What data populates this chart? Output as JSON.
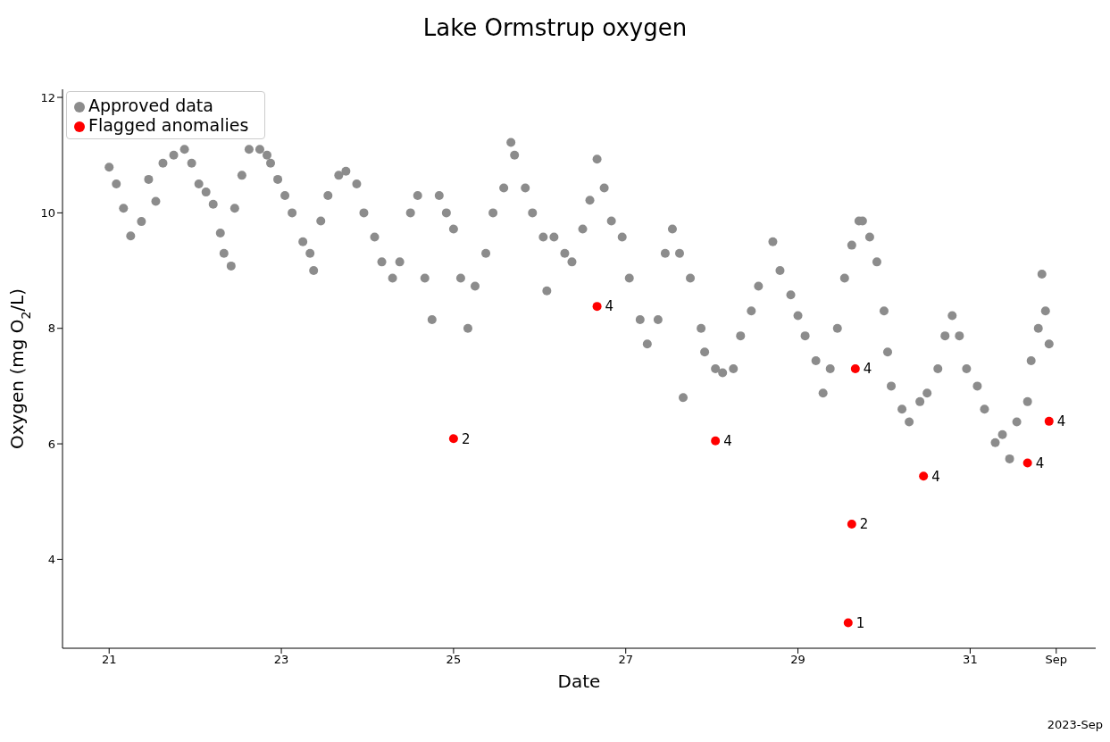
{
  "chart_data": {
    "type": "scatter",
    "title": "Lake Ormstrup oxygen",
    "xlabel": "Date",
    "ylabel": "Oxygen (mg O$_{2}$/L)",
    "annotations": [
      "2023-Sep",
      {
        "text": "2",
        "x": "2023-08-25T00:00",
        "y": 6.09
      },
      {
        "text": "4",
        "x": "2023-08-26T16:00",
        "y": 8.38
      },
      {
        "text": "4",
        "x": "2023-08-28T01:00",
        "y": 6.05
      },
      {
        "text": "1",
        "x": "2023-08-29T14:00",
        "y": 2.9
      },
      {
        "text": "2",
        "x": "2023-08-29T15:00",
        "y": 4.61
      },
      {
        "text": "4",
        "x": "2023-08-29T16:00",
        "y": 7.3
      },
      {
        "text": "4",
        "x": "2023-08-30T11:00",
        "y": 5.44
      },
      {
        "text": "4",
        "x": "2023-08-31T16:00",
        "y": 5.67
      },
      {
        "text": "4",
        "x": "2023-08-31T22:00",
        "y": 6.39
      }
    ],
    "xlim": [
      "2023-08-20T11:00",
      "2023-09-01T11:00"
    ],
    "xticks": [
      {
        "value": "2023-08-21",
        "label": "21"
      },
      {
        "value": "2023-08-23",
        "label": "23"
      },
      {
        "value": "2023-08-25",
        "label": "25"
      },
      {
        "value": "2023-08-27",
        "label": "27"
      },
      {
        "value": "2023-08-29",
        "label": "29"
      },
      {
        "value": "2023-08-31",
        "label": "31"
      },
      {
        "value": "2023-09-01",
        "label": "Sep"
      }
    ],
    "ylim": [
      2.46,
      12.14
    ],
    "yticks": [
      4,
      6,
      8,
      10,
      12
    ],
    "grid": false,
    "legend": "top left",
    "marker": "circle",
    "series": [
      {
        "name": "Approved data",
        "color": "#8c8c8c",
        "x": [
          "2023-08-21T00:00",
          "2023-08-21T02:00",
          "2023-08-21T04:00",
          "2023-08-21T06:00",
          "2023-08-21T09:00",
          "2023-08-21T11:00",
          "2023-08-21T13:00",
          "2023-08-21T15:00",
          "2023-08-21T18:00",
          "2023-08-21T21:00",
          "2023-08-21T23:00",
          "2023-08-22T01:00",
          "2023-08-22T03:00",
          "2023-08-22T05:00",
          "2023-08-22T07:00",
          "2023-08-22T08:00",
          "2023-08-22T10:00",
          "2023-08-22T11:00",
          "2023-08-22T13:00",
          "2023-08-22T15:00",
          "2023-08-22T18:00",
          "2023-08-22T20:00",
          "2023-08-22T21:00",
          "2023-08-22T23:00",
          "2023-08-23T01:00",
          "2023-08-23T03:00",
          "2023-08-23T06:00",
          "2023-08-23T08:00",
          "2023-08-23T09:00",
          "2023-08-23T11:00",
          "2023-08-23T13:00",
          "2023-08-23T16:00",
          "2023-08-23T18:00",
          "2023-08-23T21:00",
          "2023-08-23T23:00",
          "2023-08-24T02:00",
          "2023-08-24T04:00",
          "2023-08-24T07:00",
          "2023-08-24T09:00",
          "2023-08-24T12:00",
          "2023-08-24T14:00",
          "2023-08-24T16:00",
          "2023-08-24T18:00",
          "2023-08-24T20:00",
          "2023-08-24T22:00",
          "2023-08-25T00:00",
          "2023-08-25T02:00",
          "2023-08-25T04:00",
          "2023-08-25T06:00",
          "2023-08-25T09:00",
          "2023-08-25T11:00",
          "2023-08-25T14:00",
          "2023-08-25T16:00",
          "2023-08-25T17:00",
          "2023-08-25T20:00",
          "2023-08-25T22:00",
          "2023-08-26T01:00",
          "2023-08-26T02:00",
          "2023-08-26T04:00",
          "2023-08-26T07:00",
          "2023-08-26T09:00",
          "2023-08-26T12:00",
          "2023-08-26T14:00",
          "2023-08-26T16:00",
          "2023-08-26T18:00",
          "2023-08-26T20:00",
          "2023-08-26T23:00",
          "2023-08-27T01:00",
          "2023-08-27T04:00",
          "2023-08-27T06:00",
          "2023-08-27T09:00",
          "2023-08-27T11:00",
          "2023-08-27T13:00",
          "2023-08-27T15:00",
          "2023-08-27T16:00",
          "2023-08-27T18:00",
          "2023-08-27T21:00",
          "2023-08-27T22:00",
          "2023-08-28T01:00",
          "2023-08-28T03:00",
          "2023-08-28T06:00",
          "2023-08-28T08:00",
          "2023-08-28T11:00",
          "2023-08-28T13:00",
          "2023-08-28T17:00",
          "2023-08-28T19:00",
          "2023-08-28T22:00",
          "2023-08-29T00:00",
          "2023-08-29T02:00",
          "2023-08-29T05:00",
          "2023-08-29T07:00",
          "2023-08-29T09:00",
          "2023-08-29T11:00",
          "2023-08-29T13:00",
          "2023-08-29T15:00",
          "2023-08-29T17:00",
          "2023-08-29T18:00",
          "2023-08-29T20:00",
          "2023-08-29T22:00",
          "2023-08-30T00:00",
          "2023-08-30T01:00",
          "2023-08-30T02:00",
          "2023-08-30T05:00",
          "2023-08-30T07:00",
          "2023-08-30T10:00",
          "2023-08-30T12:00",
          "2023-08-30T15:00",
          "2023-08-30T17:00",
          "2023-08-30T19:00",
          "2023-08-30T21:00",
          "2023-08-30T23:00",
          "2023-08-31T02:00",
          "2023-08-31T04:00",
          "2023-08-31T07:00",
          "2023-08-31T09:00",
          "2023-08-31T11:00",
          "2023-08-31T13:00",
          "2023-08-31T16:00",
          "2023-08-31T17:00",
          "2023-08-31T19:00",
          "2023-08-31T20:00",
          "2023-08-31T21:00",
          "2023-08-31T22:00"
        ],
        "values": [
          10.79,
          10.5,
          10.08,
          9.6,
          9.85,
          10.58,
          10.2,
          10.86,
          11.0,
          11.1,
          10.86,
          10.5,
          10.36,
          10.15,
          9.65,
          9.3,
          9.08,
          10.08,
          10.65,
          11.1,
          11.1,
          11.0,
          10.86,
          10.58,
          10.3,
          10.0,
          9.5,
          9.3,
          9.0,
          9.86,
          10.3,
          10.65,
          10.72,
          10.5,
          10.0,
          9.58,
          9.15,
          8.87,
          9.15,
          10.0,
          10.3,
          8.87,
          8.15,
          10.3,
          10.0,
          9.72,
          8.87,
          8.0,
          8.73,
          9.3,
          10.0,
          10.43,
          11.22,
          11.0,
          10.43,
          10.0,
          9.58,
          8.65,
          9.58,
          9.3,
          9.15,
          9.72,
          10.22,
          10.93,
          10.43,
          9.86,
          9.58,
          8.87,
          8.15,
          7.73,
          8.15,
          9.3,
          9.72,
          9.3,
          6.8,
          8.87,
          8.0,
          7.59,
          7.3,
          7.23,
          7.3,
          7.87,
          8.3,
          8.73,
          9.5,
          9.0,
          8.58,
          8.22,
          7.87,
          7.44,
          6.88,
          7.3,
          8.0,
          8.87,
          9.44,
          9.86,
          9.86,
          9.58,
          9.15,
          8.3,
          7.59,
          7.0,
          6.6,
          6.38,
          6.73,
          6.88,
          7.3,
          7.87,
          8.22,
          7.87,
          7.3,
          7.0,
          6.6,
          6.02,
          6.16,
          5.74,
          6.38,
          6.73,
          7.44,
          8.0,
          8.94,
          8.3,
          7.73
        ]
      },
      {
        "name": "Flagged anomalies",
        "color": "#ff0000",
        "x": [
          "2023-08-25T00:00",
          "2023-08-26T16:00",
          "2023-08-28T01:00",
          "2023-08-29T14:00",
          "2023-08-29T15:00",
          "2023-08-29T16:00",
          "2023-08-30T11:00",
          "2023-08-31T16:00",
          "2023-08-31T22:00"
        ],
        "values": [
          6.09,
          8.38,
          6.05,
          2.9,
          4.61,
          7.3,
          5.44,
          5.67,
          6.39
        ]
      }
    ]
  }
}
